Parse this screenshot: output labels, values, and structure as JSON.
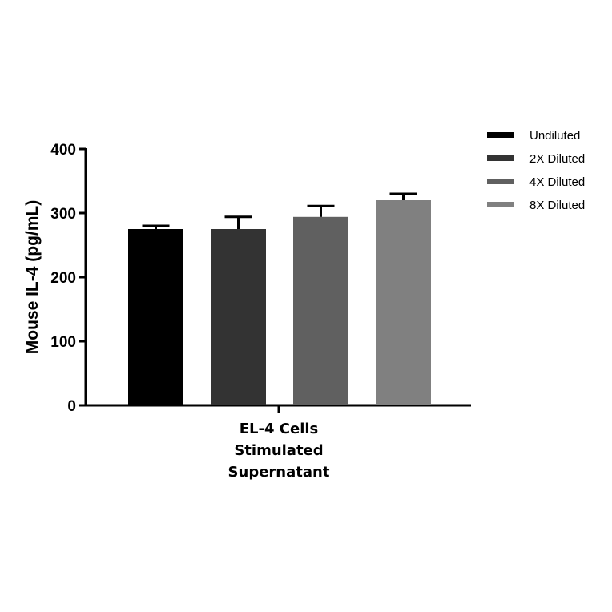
{
  "chart_data": {
    "type": "bar",
    "title": "",
    "xlabel": "",
    "ylabel": "Mouse IL-4 (pg/mL)",
    "ylim": [
      0,
      400
    ],
    "yticks": [
      0,
      100,
      200,
      300,
      400
    ],
    "categories": [
      "EL-4 Cells Stimulated Supernatant"
    ],
    "category_lines": [
      "EL-4 Cells",
      "Stimulated",
      "Supernatant"
    ],
    "series": [
      {
        "name": "Undiluted",
        "values": [
          275
        ],
        "error": [
          5
        ],
        "color": "#000000"
      },
      {
        "name": "2X Diluted",
        "values": [
          275
        ],
        "error": [
          19
        ],
        "color": "#333333"
      },
      {
        "name": "4X Diluted",
        "values": [
          294
        ],
        "error": [
          17
        ],
        "color": "#606060"
      },
      {
        "name": "8X Diluted",
        "values": [
          320
        ],
        "error": [
          10
        ],
        "color": "#808080"
      }
    ],
    "grid": false,
    "legend_position": "right-top"
  }
}
